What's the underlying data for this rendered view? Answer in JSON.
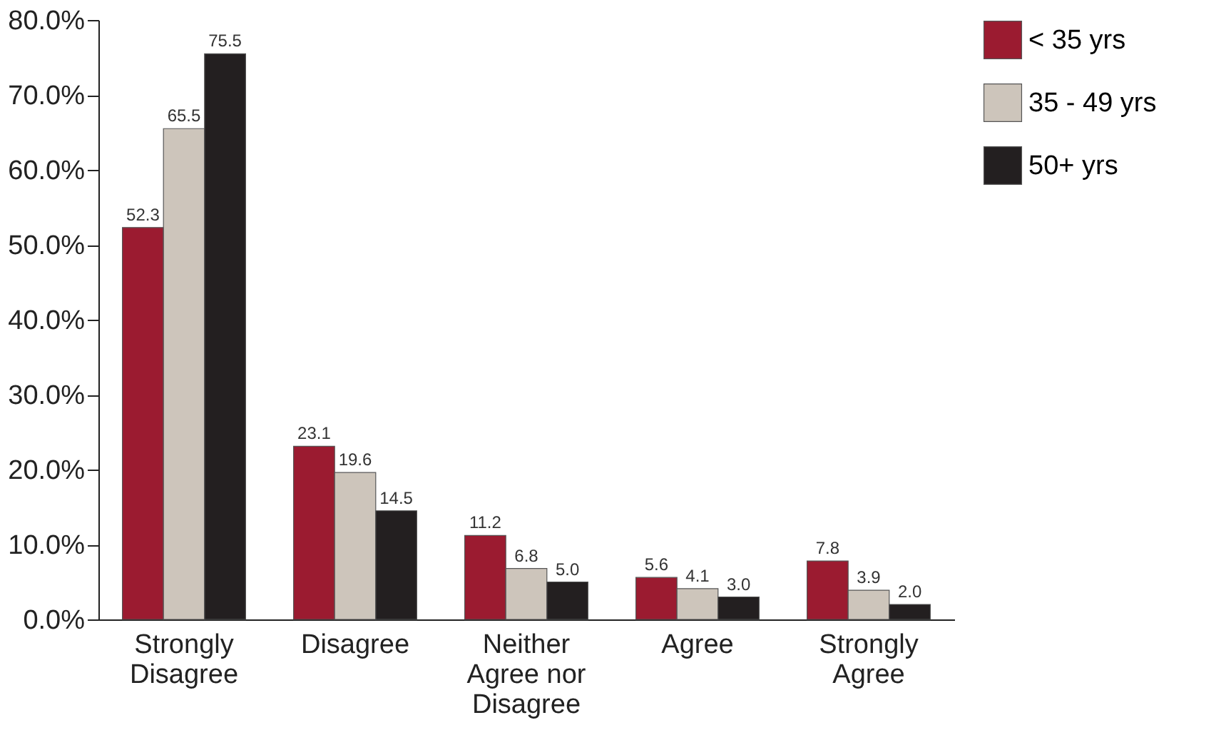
{
  "chart_data": {
    "type": "bar",
    "categories": [
      "Strongly Disagree",
      "Disagree",
      "Neither Agree nor Disagree",
      "Agree",
      "Strongly Agree"
    ],
    "series": [
      {
        "name": "< 35 yrs",
        "color": "#9b1b30",
        "values": [
          52.3,
          23.1,
          11.2,
          5.6,
          7.8
        ],
        "value_labels": [
          "52.3",
          "23.1",
          "11.2",
          "5.6",
          "7.8"
        ]
      },
      {
        "name": "35 - 49 yrs",
        "color": "#cdc5bb",
        "values": [
          65.5,
          19.6,
          6.8,
          4.1,
          3.9
        ],
        "value_labels": [
          "65.5",
          "19.6",
          "6.8",
          "4.1",
          "3.9"
        ]
      },
      {
        "name": "50+ yrs",
        "color": "#231f20",
        "values": [
          75.5,
          14.5,
          5.0,
          3.0,
          2.0
        ],
        "value_labels": [
          "75.5",
          "14.5",
          "5.0",
          "3.0",
          "2.0"
        ]
      }
    ],
    "ylim": [
      0,
      80
    ],
    "yticks": [
      {
        "value": 0,
        "label": "0.0%"
      },
      {
        "value": 10,
        "label": "10.0%"
      },
      {
        "value": 20,
        "label": "20.0%"
      },
      {
        "value": 30,
        "label": "30.0%"
      },
      {
        "value": 40,
        "label": "40.0%"
      },
      {
        "value": 50,
        "label": "50.0%"
      },
      {
        "value": 60,
        "label": "60.0%"
      },
      {
        "value": 70,
        "label": "70.0%"
      },
      {
        "value": 80,
        "label": "80.0%"
      }
    ],
    "legend": "top right",
    "grid": false
  }
}
